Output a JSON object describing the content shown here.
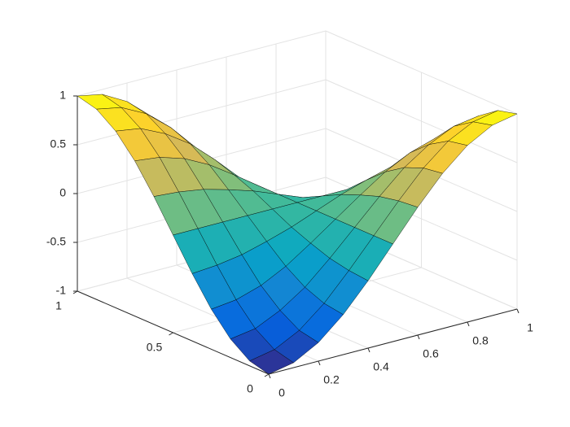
{
  "chart_data": {
    "type": "surface",
    "x": [
      0,
      0.1,
      0.2,
      0.3,
      0.4,
      0.5,
      0.6,
      0.7,
      0.8,
      0.9,
      1
    ],
    "y": [
      0,
      0.1,
      0.2,
      0.3,
      0.4,
      0.5,
      0.6,
      0.7,
      0.8,
      0.9,
      1
    ],
    "z": [
      [
        -1,
        -0.95,
        -0.81,
        -0.59,
        -0.31,
        0,
        0.31,
        0.59,
        0.81,
        0.95,
        1
      ],
      [
        -0.95,
        -0.9,
        -0.77,
        -0.56,
        -0.29,
        0,
        0.29,
        0.56,
        0.77,
        0.9,
        0.95
      ],
      [
        -0.81,
        -0.77,
        -0.65,
        -0.48,
        -0.25,
        0,
        0.25,
        0.48,
        0.65,
        0.77,
        0.81
      ],
      [
        -0.59,
        -0.56,
        -0.48,
        -0.35,
        -0.18,
        0,
        0.18,
        0.35,
        0.48,
        0.56,
        0.59
      ],
      [
        -0.31,
        -0.29,
        -0.25,
        -0.18,
        -0.1,
        0,
        0.1,
        0.18,
        0.25,
        0.29,
        0.31
      ],
      [
        0,
        0,
        0,
        0,
        0,
        0,
        0,
        0,
        0,
        0,
        0
      ],
      [
        0.31,
        0.29,
        0.25,
        0.18,
        0.1,
        0,
        -0.1,
        -0.18,
        -0.25,
        -0.29,
        -0.31
      ],
      [
        0.59,
        0.56,
        0.48,
        0.35,
        0.18,
        0,
        -0.18,
        -0.35,
        -0.48,
        -0.56,
        -0.59
      ],
      [
        0.81,
        0.77,
        0.65,
        0.48,
        0.25,
        0,
        -0.25,
        -0.48,
        -0.65,
        -0.77,
        -0.81
      ],
      [
        0.95,
        0.9,
        0.77,
        0.56,
        0.29,
        0,
        -0.29,
        -0.56,
        -0.77,
        -0.9,
        -0.95
      ],
      [
        1,
        0.95,
        0.81,
        0.59,
        0.31,
        0,
        -0.31,
        -0.59,
        -0.81,
        -0.95,
        -1
      ]
    ],
    "xlim": [
      0,
      1
    ],
    "ylim": [
      0,
      1
    ],
    "zlim": [
      -1,
      1
    ],
    "xticks": [
      0,
      0.2,
      0.4,
      0.6,
      0.8,
      1
    ],
    "yticks": [
      0,
      0.5,
      1
    ],
    "zticks": [
      -1,
      -0.5,
      0,
      0.5,
      1
    ],
    "grid": true,
    "colormap": [
      "#352a87",
      "#0363e1",
      "#1485d4",
      "#06a7c6",
      "#38b99e",
      "#92bf73",
      "#d9ba56",
      "#fcce2e",
      "#f9fb0e"
    ],
    "edgecolor": "#000000"
  }
}
